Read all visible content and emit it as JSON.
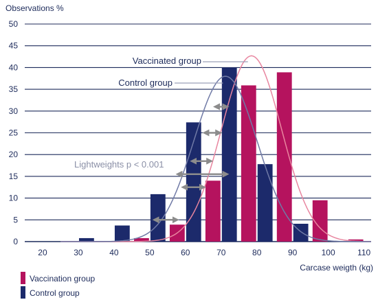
{
  "chart_data": {
    "type": "bar",
    "ylabel": "Observations %",
    "xlabel": "Carcase weigth (kg)",
    "ylim": [
      0,
      50
    ],
    "xlim": [
      15,
      112
    ],
    "yticks": [
      0,
      5,
      10,
      15,
      20,
      25,
      30,
      35,
      40,
      45,
      50
    ],
    "xticks": [
      20,
      30,
      40,
      50,
      60,
      70,
      80,
      90,
      100,
      110
    ],
    "grid": "horizontal",
    "legend_position": "bottom-left",
    "categories": [
      25,
      35,
      45,
      55,
      65,
      75,
      85,
      95,
      105
    ],
    "series": [
      {
        "name": "Control group",
        "color": "#1c2a6b",
        "values": [
          0,
          0.8,
          3.7,
          10.9,
          27.4,
          40.0,
          17.8,
          4.1,
          0
        ]
      },
      {
        "name": "Vaccination group",
        "color": "#b5135e",
        "values": [
          0,
          0,
          0.8,
          3.9,
          14.0,
          35.9,
          38.9,
          9.5,
          0.5
        ]
      }
    ],
    "curves": [
      {
        "name": "Vaccinated group",
        "color": "#e8859f",
        "mean": 78.5,
        "sd": 8.4,
        "peak": 42.7
      },
      {
        "name": "Control group",
        "color": "#707aa6",
        "mean": 71.2,
        "sd": 8.9,
        "peak": 38.0
      }
    ],
    "annotations": {
      "vaccinated_curve": "Vaccinated group",
      "control_curve": "Control group",
      "lightweights": "Lightweights p < 0.001"
    },
    "shift_arrows": [
      {
        "y": 15.5,
        "x_from": 58,
        "x_to": 71.5
      },
      {
        "y": 12.5,
        "x_from": 59.5,
        "x_to": 65
      },
      {
        "y": 18.5,
        "x_from": 62,
        "x_to": 67
      },
      {
        "y": 25,
        "x_from": 65.5,
        "x_to": 69.5
      },
      {
        "y": 31,
        "x_from": 68.5,
        "x_to": 71.5
      },
      {
        "y": 5,
        "x_from": 51.5,
        "x_to": 57.5
      }
    ]
  }
}
